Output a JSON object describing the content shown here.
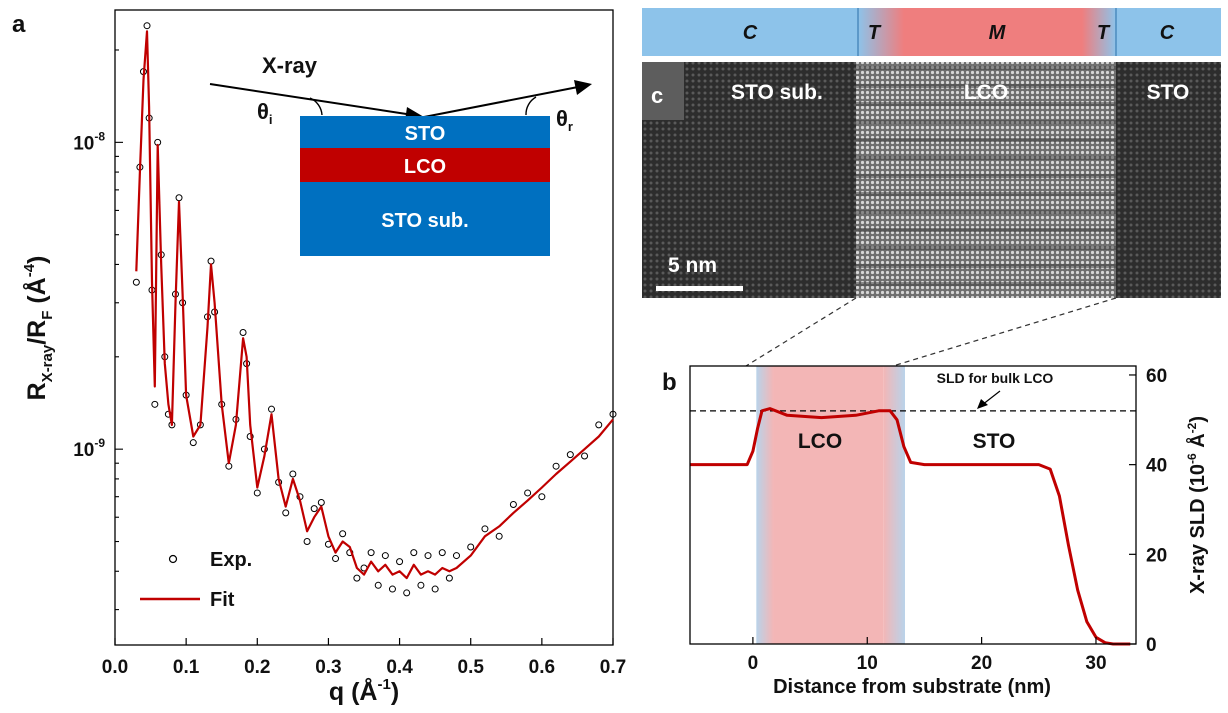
{
  "panels": {
    "a": "a",
    "b": "b",
    "c": "c"
  },
  "colors": {
    "fit": "#c00000",
    "sto": "#0070c0",
    "lco_layer": "#c00000",
    "bar_blue": "#8dc3ea",
    "bar_red": "#ef7e7e",
    "shade_blue": "#b9d3ea",
    "shade_red": "#f3b6b6"
  },
  "schematic": {
    "xray": "X-ray",
    "theta_i": "θ",
    "theta_i_sub": "i",
    "theta_r": "θ",
    "theta_r_sub": "r",
    "layer_top": "STO",
    "layer_mid": "LCO",
    "layer_sub": "STO sub."
  },
  "stem": {
    "region_bar": [
      "C",
      "T",
      "M",
      "T",
      "C"
    ],
    "label_left": "STO sub.",
    "label_mid": "LCO",
    "label_right": "STO",
    "scale_bar": "5 nm"
  },
  "chart_data": [
    {
      "id": "a",
      "type": "line+scatter",
      "xlabel": "q (Å",
      "xlabel_sup": "-1",
      "xlabel_tail": ")",
      "ylabel": "R",
      "ylabel_sub1": "X-ray",
      "ylabel_mid": "/R",
      "ylabel_sub2": "F",
      "ylabel_unit": " (Å",
      "ylabel_sup": "-4",
      "ylabel_tail": ")",
      "xlim": [
        0.0,
        0.7
      ],
      "ylog": true,
      "ylim": [
        2.3e-10,
        2.7e-08
      ],
      "xticks": [
        "0.0",
        "0.1",
        "0.2",
        "0.3",
        "0.4",
        "0.5",
        "0.6",
        "0.7"
      ],
      "yticks": [
        {
          "base": "10",
          "exp": "-8",
          "value": 1e-08
        },
        {
          "base": "10",
          "exp": "-9",
          "value": 1e-09
        }
      ],
      "legend": [
        {
          "name": "Exp.",
          "marker": "circle"
        },
        {
          "name": "Fit",
          "marker": "line"
        }
      ],
      "legend_position": "bottom-left",
      "series": [
        {
          "name": "Fit",
          "x": [
            0.03,
            0.035,
            0.04,
            0.045,
            0.048,
            0.052,
            0.056,
            0.06,
            0.065,
            0.07,
            0.075,
            0.08,
            0.085,
            0.09,
            0.095,
            0.1,
            0.11,
            0.12,
            0.13,
            0.135,
            0.14,
            0.15,
            0.16,
            0.17,
            0.18,
            0.185,
            0.19,
            0.2,
            0.21,
            0.22,
            0.23,
            0.24,
            0.25,
            0.26,
            0.27,
            0.28,
            0.29,
            0.3,
            0.31,
            0.32,
            0.33,
            0.34,
            0.35,
            0.36,
            0.37,
            0.38,
            0.39,
            0.4,
            0.41,
            0.42,
            0.43,
            0.44,
            0.45,
            0.46,
            0.47,
            0.48,
            0.5,
            0.52,
            0.54,
            0.56,
            0.58,
            0.6,
            0.62,
            0.64,
            0.66,
            0.68,
            0.7
          ],
          "y": [
            3.8e-09,
            8e-09,
            1.6e-08,
            2.3e-08,
            1.3e-08,
            3.5e-09,
            1.6e-09,
            9.8e-09,
            4e-09,
            1.9e-09,
            1.4e-09,
            1.2e-09,
            3e-09,
            6.4e-09,
            3.2e-09,
            1.5e-09,
            1.1e-09,
            1.2e-09,
            2.5e-09,
            4e-09,
            3e-09,
            1.4e-09,
            9e-10,
            1.2e-09,
            2.3e-09,
            2e-09,
            1.2e-09,
            7.5e-10,
            9.5e-10,
            1.3e-09,
            8e-10,
            6.5e-10,
            8e-10,
            6.8e-10,
            5.4e-10,
            6e-10,
            6.5e-10,
            5.2e-10,
            4.6e-10,
            5e-10,
            4.8e-10,
            4.1e-10,
            3.9e-10,
            4.3e-10,
            4e-10,
            4.2e-10,
            3.9e-10,
            4e-10,
            3.8e-10,
            4.2e-10,
            3.9e-10,
            4e-10,
            3.9e-10,
            4.1e-10,
            4e-10,
            4.1e-10,
            4.5e-10,
            5.2e-10,
            5.6e-10,
            6.2e-10,
            6.8e-10,
            7.5e-10,
            8.3e-10,
            9.1e-10,
            1e-09,
            1.1e-09,
            1.25e-09
          ]
        },
        {
          "name": "Exp.",
          "x": [
            0.03,
            0.035,
            0.04,
            0.045,
            0.048,
            0.052,
            0.056,
            0.06,
            0.065,
            0.07,
            0.075,
            0.08,
            0.085,
            0.09,
            0.095,
            0.1,
            0.11,
            0.12,
            0.13,
            0.135,
            0.14,
            0.15,
            0.16,
            0.17,
            0.18,
            0.185,
            0.19,
            0.2,
            0.21,
            0.22,
            0.23,
            0.24,
            0.25,
            0.26,
            0.27,
            0.28,
            0.29,
            0.3,
            0.31,
            0.32,
            0.33,
            0.34,
            0.35,
            0.36,
            0.37,
            0.38,
            0.39,
            0.4,
            0.41,
            0.42,
            0.43,
            0.44,
            0.45,
            0.46,
            0.47,
            0.48,
            0.5,
            0.52,
            0.54,
            0.56,
            0.58,
            0.6,
            0.62,
            0.64,
            0.66,
            0.68,
            0.7
          ],
          "y": [
            3.5e-09,
            8.3e-09,
            1.7e-08,
            2.4e-08,
            1.2e-08,
            3.3e-09,
            1.4e-09,
            1e-08,
            4.3e-09,
            2e-09,
            1.3e-09,
            1.2e-09,
            3.2e-09,
            6.6e-09,
            3e-09,
            1.5e-09,
            1.05e-09,
            1.2e-09,
            2.7e-09,
            4.1e-09,
            2.8e-09,
            1.4e-09,
            8.8e-10,
            1.25e-09,
            2.4e-09,
            1.9e-09,
            1.1e-09,
            7.2e-10,
            1e-09,
            1.35e-09,
            7.8e-10,
            6.2e-10,
            8.3e-10,
            7e-10,
            5e-10,
            6.4e-10,
            6.7e-10,
            4.9e-10,
            4.4e-10,
            5.3e-10,
            4.6e-10,
            3.8e-10,
            4.1e-10,
            4.6e-10,
            3.6e-10,
            4.5e-10,
            3.5e-10,
            4.3e-10,
            3.4e-10,
            4.6e-10,
            3.6e-10,
            4.5e-10,
            3.5e-10,
            4.6e-10,
            3.8e-10,
            4.5e-10,
            4.8e-10,
            5.5e-10,
            5.2e-10,
            6.6e-10,
            7.2e-10,
            7e-10,
            8.8e-10,
            9.6e-10,
            9.5e-10,
            1.2e-09,
            1.3e-09
          ]
        }
      ]
    },
    {
      "id": "b",
      "type": "line",
      "xlabel": "Distance from substrate (nm)",
      "ylabel": "X-ray SLD (10",
      "ylabel_sup1": "-6",
      "ylabel_mid": " Å",
      "ylabel_sup2": "-2",
      "ylabel_tail": ")",
      "xlim": [
        -5.5,
        33.5
      ],
      "ylim": [
        0,
        62
      ],
      "xticks": [
        0,
        10,
        20,
        30
      ],
      "yticks": [
        0,
        20,
        40,
        60
      ],
      "annotation": "SLD for bulk LCO",
      "bulk_lco_sld": 52,
      "region_labels": {
        "lco": "LCO",
        "sto": "STO"
      },
      "series": [
        {
          "name": "",
          "x": [
            -5.5,
            -0.5,
            0.0,
            0.4,
            0.8,
            1.5,
            3.0,
            6.0,
            9.0,
            11.0,
            12.0,
            12.6,
            13.2,
            13.8,
            15.0,
            20.0,
            25.0,
            26.0,
            26.8,
            27.6,
            28.4,
            29.2,
            30.0,
            30.8,
            31.5,
            33.0
          ],
          "y": [
            40,
            40,
            43,
            48,
            52,
            52.5,
            51,
            50.5,
            51,
            52,
            52,
            50,
            44,
            40.5,
            40,
            40,
            40,
            39,
            33,
            22,
            12,
            5,
            1.5,
            0.3,
            0,
            0
          ]
        }
      ],
      "shading": [
        {
          "from": 0.3,
          "to": 1.8,
          "color": "blue"
        },
        {
          "from": 1.8,
          "to": 11.4,
          "color": "red"
        },
        {
          "from": 11.4,
          "to": 13.3,
          "color": "blue"
        }
      ]
    }
  ]
}
